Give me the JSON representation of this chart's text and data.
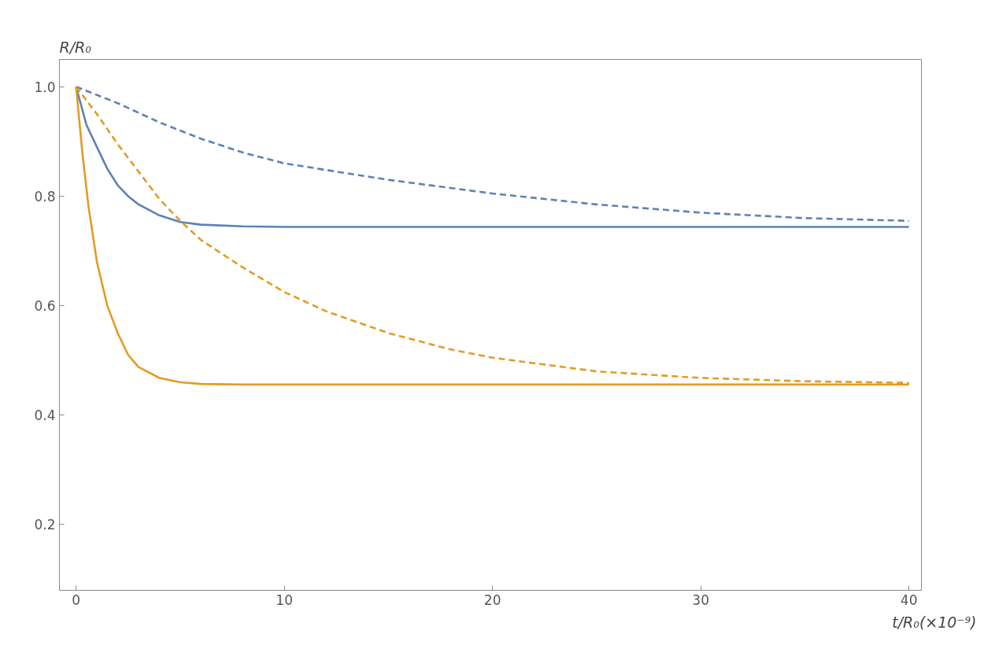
{
  "chart_data": {
    "type": "line",
    "xlabel": "t/R₀(×10⁻⁹)",
    "ylabel": "R/R₀",
    "xlim": [
      -0.8,
      40.6
    ],
    "ylim": [
      0.08,
      1.05
    ],
    "xticks": [
      0,
      10,
      20,
      30,
      40
    ],
    "yticks": [
      0.2,
      0.4,
      0.6,
      0.8,
      {
        "value": 1.0,
        "label": "1.0"
      }
    ],
    "grid": false,
    "series": [
      {
        "color": "#5e81b5",
        "line_style": "dashed",
        "x": [
          0,
          2,
          4,
          6,
          8,
          10,
          15,
          20,
          25,
          30,
          35,
          40
        ],
        "values": [
          1.0,
          0.97,
          0.935,
          0.905,
          0.88,
          0.86,
          0.83,
          0.805,
          0.785,
          0.77,
          0.76,
          0.755
        ]
      },
      {
        "color": "#5e81b5",
        "line_style": "solid",
        "x": [
          0,
          0.5,
          1,
          1.5,
          2,
          2.5,
          3,
          4,
          5,
          6,
          8,
          10,
          40
        ],
        "values": [
          1.0,
          0.93,
          0.89,
          0.85,
          0.82,
          0.8,
          0.785,
          0.765,
          0.753,
          0.748,
          0.745,
          0.744,
          0.744
        ]
      },
      {
        "color": "#e19c24",
        "line_style": "dashed",
        "x": [
          0,
          1,
          2,
          3,
          4,
          5,
          6,
          8,
          10,
          12,
          15,
          18,
          20,
          25,
          30,
          35,
          40
        ],
        "values": [
          1.0,
          0.95,
          0.895,
          0.845,
          0.795,
          0.755,
          0.72,
          0.67,
          0.625,
          0.59,
          0.55,
          0.52,
          0.505,
          0.48,
          0.468,
          0.462,
          0.459
        ]
      },
      {
        "color": "#e19c24",
        "line_style": "solid",
        "x": [
          0,
          0.3,
          0.6,
          1,
          1.5,
          2,
          2.5,
          3,
          4,
          5,
          6,
          8,
          40
        ],
        "values": [
          1.0,
          0.88,
          0.78,
          0.68,
          0.6,
          0.55,
          0.51,
          0.488,
          0.468,
          0.46,
          0.457,
          0.456,
          0.456
        ]
      }
    ]
  }
}
